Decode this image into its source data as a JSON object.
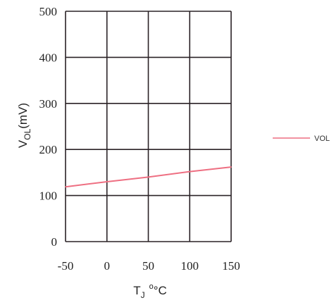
{
  "chart_data": {
    "type": "line",
    "title": "",
    "xlabel": {
      "main": "T",
      "sub": "J",
      "unit": "°C"
    },
    "ylabel": {
      "main": "V",
      "sub": "OL",
      "unit": "(mV)"
    },
    "xlim": [
      -50,
      150
    ],
    "ylim": [
      0,
      500
    ],
    "xticks": [
      "-50",
      "0",
      "50",
      "100",
      "150"
    ],
    "yticks": [
      "0",
      "100",
      "200",
      "300",
      "400",
      "500"
    ],
    "grid": true,
    "legend_position": "right",
    "series": [
      {
        "name": "VOL",
        "color": "#ee6f82",
        "x": [
          -50,
          0,
          50,
          100,
          150
        ],
        "y": [
          119,
          130,
          140,
          152,
          162
        ]
      }
    ]
  }
}
